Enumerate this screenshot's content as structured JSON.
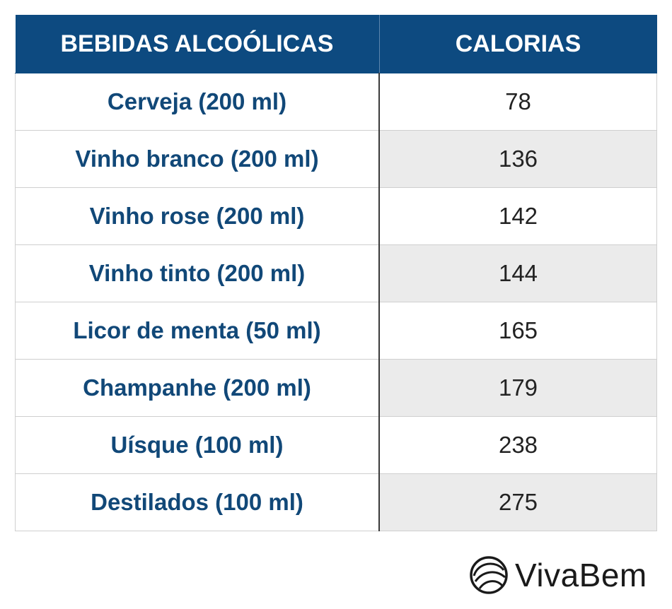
{
  "chart_data": {
    "type": "table",
    "columns": [
      "BEBIDAS ALCOÓLICAS",
      "CALORIAS"
    ],
    "rows": [
      {
        "drink": "Cerveja (200 ml)",
        "calories": "78"
      },
      {
        "drink": "Vinho branco (200 ml)",
        "calories": "136"
      },
      {
        "drink": "Vinho rose (200 ml)",
        "calories": "142"
      },
      {
        "drink": "Vinho tinto (200 ml)",
        "calories": "144"
      },
      {
        "drink": "Licor de menta (50 ml)",
        "calories": "165"
      },
      {
        "drink": "Champanhe (200 ml)",
        "calories": "179"
      },
      {
        "drink": "Uísque (100 ml)",
        "calories": "238"
      },
      {
        "drink": "Destilados (100 ml)",
        "calories": "275"
      }
    ]
  },
  "colors": {
    "header_bg": "#0d4a80",
    "drink_text": "#114878",
    "stripe": "#ebebeb"
  },
  "brand": {
    "name": "VivaBem",
    "icon": "vivabem-logo-icon"
  }
}
